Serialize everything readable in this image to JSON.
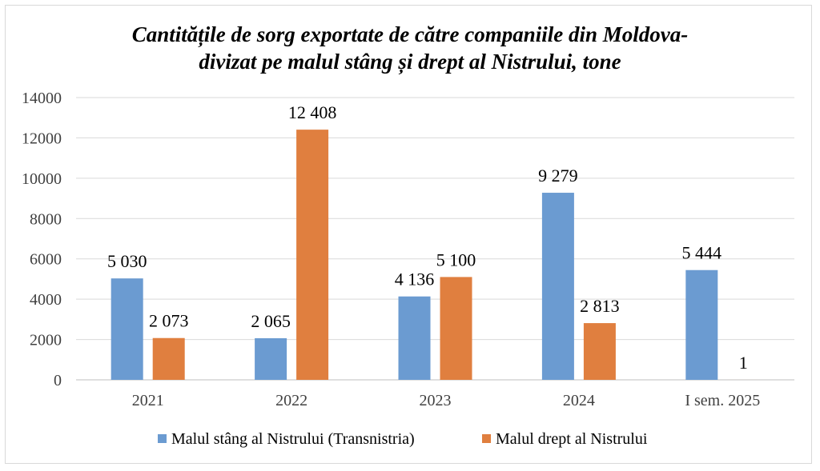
{
  "chart_data": {
    "type": "bar",
    "title_lines": [
      "Cantitățile de sorg exportate de către companiile din Moldova-",
      "divizat pe malul stâng și drept al Nistrului, tone"
    ],
    "categories": [
      "2021",
      "2022",
      "2023",
      "2024",
      "I sem. 2025"
    ],
    "series": [
      {
        "name": "Malul stâng al Nistrului (Transnistria)",
        "color": "#6b9bd1",
        "values": [
          5030,
          2065,
          4136,
          9279,
          5444
        ],
        "labels": [
          "5 030",
          "2 065",
          "4 136",
          "9 279",
          "5 444"
        ]
      },
      {
        "name": "Malul drept al Nistrului",
        "color": "#e07f3f",
        "values": [
          2073,
          12408,
          5100,
          2813,
          1
        ],
        "labels": [
          "2 073",
          "12 408",
          "5 100",
          "2 813",
          "1"
        ]
      }
    ],
    "yticks": [
      "0",
      "2000",
      "4000",
      "6000",
      "8000",
      "10000",
      "12000",
      "14000"
    ],
    "ylim": [
      0,
      14000
    ],
    "grid": true,
    "legend_position": "bottom"
  }
}
